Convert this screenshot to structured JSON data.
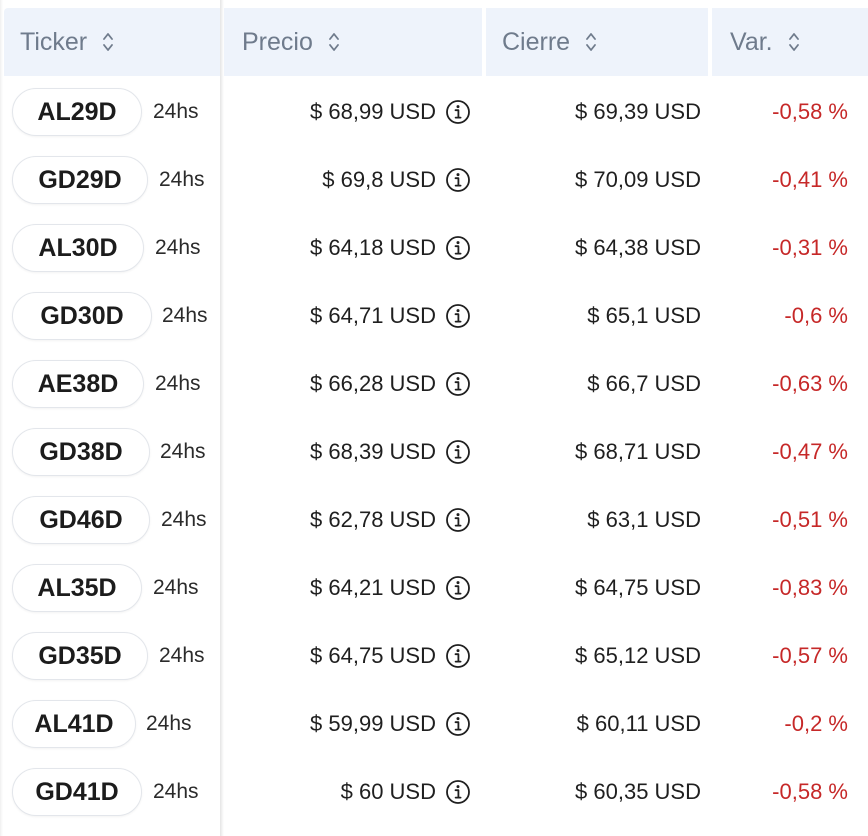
{
  "columns": {
    "ticker": "Ticker",
    "precio": "Precio",
    "cierre": "Cierre",
    "var": "Var."
  },
  "rows": [
    {
      "ticker": "AL29D",
      "term": "24hs",
      "precio": "$ 68,99 USD",
      "cierre": "$ 69,39 USD",
      "var": "-0,58 %"
    },
    {
      "ticker": "GD29D",
      "term": "24hs",
      "precio": "$ 69,8 USD",
      "cierre": "$ 70,09 USD",
      "var": "-0,41 %"
    },
    {
      "ticker": "AL30D",
      "term": "24hs",
      "precio": "$ 64,18 USD",
      "cierre": "$ 64,38 USD",
      "var": "-0,31 %"
    },
    {
      "ticker": "GD30D",
      "term": "24hs",
      "precio": "$ 64,71 USD",
      "cierre": "$ 65,1 USD",
      "var": "-0,6 %"
    },
    {
      "ticker": "AE38D",
      "term": "24hs",
      "precio": "$ 66,28 USD",
      "cierre": "$ 66,7 USD",
      "var": "-0,63 %"
    },
    {
      "ticker": "GD38D",
      "term": "24hs",
      "precio": "$ 68,39 USD",
      "cierre": "$ 68,71 USD",
      "var": "-0,47 %"
    },
    {
      "ticker": "GD46D",
      "term": "24hs",
      "precio": "$ 62,78 USD",
      "cierre": "$ 63,1 USD",
      "var": "-0,51 %"
    },
    {
      "ticker": "AL35D",
      "term": "24hs",
      "precio": "$ 64,21 USD",
      "cierre": "$ 64,75 USD",
      "var": "-0,83 %"
    },
    {
      "ticker": "GD35D",
      "term": "24hs",
      "precio": "$ 64,75 USD",
      "cierre": "$ 65,12 USD",
      "var": "-0,57 %"
    },
    {
      "ticker": "AL41D",
      "term": "24hs",
      "precio": "$ 59,99 USD",
      "cierre": "$ 60,11 USD",
      "var": "-0,2 %"
    },
    {
      "ticker": "GD41D",
      "term": "24hs",
      "precio": "$ 60 USD",
      "cierre": "$ 60,35 USD",
      "var": "-0,58 %"
    }
  ],
  "icons": {
    "sort": "sort-updown-icon",
    "info": "info-circle-icon"
  },
  "colors": {
    "header_bg": "#eef3fb",
    "header_text": "#6f7b8c",
    "negative": "#c62828"
  }
}
